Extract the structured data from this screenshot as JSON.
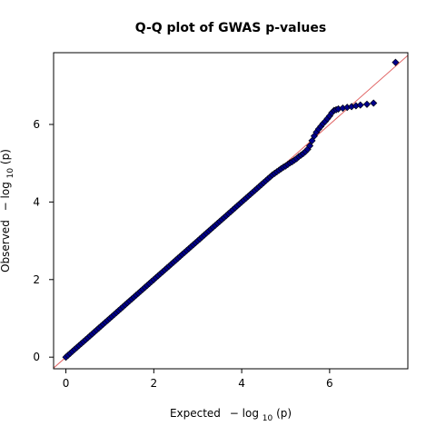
{
  "chart_data": {
    "type": "scatter",
    "title": "Q-Q plot of GWAS p-values",
    "xlabel": {
      "prefix": "Expected",
      "minus": "−",
      "log": "log",
      "base": "10",
      "arg": "(p)"
    },
    "ylabel": {
      "prefix": "Observed",
      "minus": "−",
      "log": "log",
      "base": "10",
      "arg": "(p)"
    },
    "xlim": [
      -0.28,
      7.78
    ],
    "ylim": [
      -0.3,
      7.85
    ],
    "xticks": [
      0,
      2,
      4,
      6
    ],
    "yticks": [
      0,
      2,
      4,
      6
    ],
    "grid": false,
    "reference_line": {
      "type": "y = x",
      "color": "#e06060"
    },
    "point_color": "#00008b",
    "point_border": "#000000",
    "marker": "diamond",
    "points": [
      [
        0.0,
        0.0
      ],
      [
        0.05,
        0.05
      ],
      [
        0.1,
        0.1
      ],
      [
        0.15,
        0.15
      ],
      [
        0.2,
        0.2
      ],
      [
        0.25,
        0.25
      ],
      [
        0.3,
        0.3
      ],
      [
        0.35,
        0.35
      ],
      [
        0.4,
        0.4
      ],
      [
        0.45,
        0.45
      ],
      [
        0.5,
        0.5
      ],
      [
        0.55,
        0.55
      ],
      [
        0.6,
        0.6
      ],
      [
        0.65,
        0.65
      ],
      [
        0.7,
        0.7
      ],
      [
        0.75,
        0.75
      ],
      [
        0.8,
        0.8
      ],
      [
        0.85,
        0.85
      ],
      [
        0.9,
        0.9
      ],
      [
        0.95,
        0.95
      ],
      [
        1.0,
        1.0
      ],
      [
        1.05,
        1.05
      ],
      [
        1.1,
        1.1
      ],
      [
        1.15,
        1.15
      ],
      [
        1.2,
        1.2
      ],
      [
        1.25,
        1.25
      ],
      [
        1.3,
        1.3
      ],
      [
        1.35,
        1.35
      ],
      [
        1.4,
        1.4
      ],
      [
        1.45,
        1.45
      ],
      [
        1.5,
        1.5
      ],
      [
        1.55,
        1.55
      ],
      [
        1.6,
        1.6
      ],
      [
        1.65,
        1.65
      ],
      [
        1.7,
        1.7
      ],
      [
        1.75,
        1.75
      ],
      [
        1.8,
        1.8
      ],
      [
        1.85,
        1.85
      ],
      [
        1.9,
        1.9
      ],
      [
        1.95,
        1.95
      ],
      [
        2.0,
        2.0
      ],
      [
        2.05,
        2.05
      ],
      [
        2.1,
        2.1
      ],
      [
        2.15,
        2.15
      ],
      [
        2.2,
        2.2
      ],
      [
        2.25,
        2.25
      ],
      [
        2.3,
        2.3
      ],
      [
        2.35,
        2.35
      ],
      [
        2.4,
        2.4
      ],
      [
        2.45,
        2.45
      ],
      [
        2.5,
        2.5
      ],
      [
        2.55,
        2.55
      ],
      [
        2.6,
        2.6
      ],
      [
        2.65,
        2.65
      ],
      [
        2.7,
        2.7
      ],
      [
        2.75,
        2.75
      ],
      [
        2.8,
        2.8
      ],
      [
        2.85,
        2.85
      ],
      [
        2.9,
        2.9
      ],
      [
        2.95,
        2.95
      ],
      [
        3.0,
        3.0
      ],
      [
        3.05,
        3.05
      ],
      [
        3.1,
        3.1
      ],
      [
        3.15,
        3.15
      ],
      [
        3.2,
        3.2
      ],
      [
        3.25,
        3.25
      ],
      [
        3.3,
        3.3
      ],
      [
        3.35,
        3.35
      ],
      [
        3.4,
        3.4
      ],
      [
        3.45,
        3.45
      ],
      [
        3.5,
        3.5
      ],
      [
        3.55,
        3.55
      ],
      [
        3.6,
        3.6
      ],
      [
        3.65,
        3.65
      ],
      [
        3.7,
        3.7
      ],
      [
        3.75,
        3.75
      ],
      [
        3.8,
        3.8
      ],
      [
        3.85,
        3.85
      ],
      [
        3.9,
        3.9
      ],
      [
        3.95,
        3.95
      ],
      [
        4.0,
        4.0
      ],
      [
        4.05,
        4.05
      ],
      [
        4.1,
        4.1
      ],
      [
        4.15,
        4.15
      ],
      [
        4.2,
        4.2
      ],
      [
        4.25,
        4.25
      ],
      [
        4.3,
        4.3
      ],
      [
        4.35,
        4.35
      ],
      [
        4.4,
        4.4
      ],
      [
        4.45,
        4.45
      ],
      [
        4.5,
        4.5
      ],
      [
        4.55,
        4.55
      ],
      [
        4.6,
        4.6
      ],
      [
        4.65,
        4.65
      ],
      [
        4.7,
        4.7
      ],
      [
        4.75,
        4.74
      ],
      [
        4.8,
        4.78
      ],
      [
        4.85,
        4.82
      ],
      [
        4.9,
        4.86
      ],
      [
        4.95,
        4.9
      ],
      [
        5.0,
        4.93
      ],
      [
        5.05,
        4.97
      ],
      [
        5.1,
        5.01
      ],
      [
        5.15,
        5.04
      ],
      [
        5.2,
        5.08
      ],
      [
        5.25,
        5.12
      ],
      [
        5.3,
        5.17
      ],
      [
        5.35,
        5.21
      ],
      [
        5.4,
        5.25
      ],
      [
        5.45,
        5.3
      ],
      [
        5.5,
        5.36
      ],
      [
        5.55,
        5.45
      ],
      [
        5.6,
        5.58
      ],
      [
        5.65,
        5.7
      ],
      [
        5.7,
        5.8
      ],
      [
        5.75,
        5.88
      ],
      [
        5.8,
        5.95
      ],
      [
        5.85,
        6.02
      ],
      [
        5.9,
        6.08
      ],
      [
        5.95,
        6.15
      ],
      [
        6.0,
        6.22
      ],
      [
        6.05,
        6.3
      ],
      [
        6.1,
        6.36
      ],
      [
        6.15,
        6.38
      ],
      [
        6.2,
        6.4
      ],
      [
        6.3,
        6.42
      ],
      [
        6.4,
        6.44
      ],
      [
        6.5,
        6.46
      ],
      [
        6.6,
        6.48
      ],
      [
        6.7,
        6.5
      ],
      [
        6.85,
        6.52
      ],
      [
        7.0,
        6.55
      ],
      [
        7.5,
        7.6
      ]
    ]
  }
}
